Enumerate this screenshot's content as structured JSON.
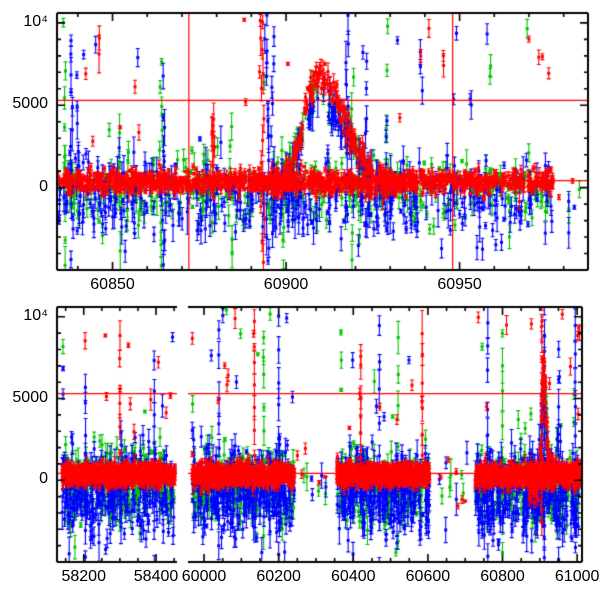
{
  "figure": {
    "background": "#ffffff",
    "frame_color": "#000000",
    "refline_color": "#ff0000",
    "marker_colors": {
      "red": "#ff0000",
      "green": "#00c300",
      "blue": "#0000ff"
    },
    "style": {
      "marker": 3,
      "cap": 2,
      "bar_width": 1.1
    },
    "error_bars": {
      "red": {
        "mu": 200,
        "sigma": 90,
        "min": 60
      },
      "green": {
        "mu": 480,
        "sigma": 220,
        "min": 100
      },
      "blue": {
        "mu": 560,
        "sigma": 260,
        "min": 120
      },
      "burst": {
        "mu": 700,
        "sigma": 300,
        "min": 200
      },
      "outlier": {
        "mu": 320,
        "sigma": 150,
        "min": 90
      }
    }
  },
  "chart_data": {
    "type": "scatter",
    "description": "Two-panel photometric light curve; flux vs MJD with error bars in three bands (red, green, blue points), red reference lines at flux 5300 and 420; top panel is a zoom of MJD 60834-60987 with vertical red marker lines at 60872 and 60948; bottom panel has a broken time axis (58126-58458, then 59957-61013) with four dense observing seasons.",
    "seed": 20240613,
    "y_axis": {
      "lim": [
        -5000,
        10600
      ],
      "minor_step": 1000,
      "major_ticks": [
        {
          "value": 10000,
          "label": "10⁴"
        },
        {
          "value": 5000,
          "label": "5000"
        },
        {
          "value": 0,
          "label": "0"
        }
      ]
    },
    "panels": [
      {
        "name": "top-panel",
        "rect": {
          "left": 57,
          "top": 13,
          "right": 588,
          "bottom": 270
        },
        "boxes": [
          {
            "left": 57,
            "right": 588,
            "xlim": [
              60834,
              60987
            ],
            "edge_left": true,
            "edge_right": true,
            "minor_step": 10,
            "major_ticks": [
              {
                "value": 60850,
                "label": "60850"
              },
              {
                "value": 60900,
                "label": "60900"
              },
              {
                "value": 60950,
                "label": "60950"
              }
            ]
          }
        ],
        "hlines": [
          5300,
          420
        ],
        "vlines": [
          60872,
          60948
        ],
        "outliers": {
          "frac": 0.012,
          "lo": 2600,
          "hi": 10300
        },
        "segments": [
          {
            "t0": 60834.5,
            "t1": 60977,
            "red": {
              "n": 1250,
              "mu": 340,
              "sigma": 330
            },
            "blue": {
              "n": 430,
              "mu": -550,
              "sigma": 1250
            },
            "green": {
              "n": 360,
              "mu": -200,
              "sigma": 1000
            }
          },
          {
            "t0": 60977,
            "t1": 60985,
            "red": {
              "n": 2,
              "mu": 0,
              "sigma": 500
            },
            "blue": {
              "n": 3,
              "mu": -1200,
              "sigma": 900
            },
            "green": {
              "n": 2,
              "mu": -800,
              "sigma": 700
            }
          }
        ],
        "flare": {
          "center": 60909.5,
          "rise": 4.5,
          "fall": 7.5,
          "window": [
            60896,
            60932
          ],
          "amps": {
            "red": 6700,
            "blue": 5400,
            "green": 5900
          },
          "extra_n": {
            "red": 230,
            "blue": 90,
            "green": 75
          },
          "scatter": 430
        },
        "bursts": [
          {
            "t": 60836.3,
            "color": "green",
            "lo": -4600,
            "hi": 7000,
            "n": 8
          },
          {
            "t": 60838.4,
            "color": "blue",
            "lo": -4300,
            "hi": 8200,
            "n": 12
          },
          {
            "t": 60840.0,
            "color": "blue",
            "lo": -2500,
            "hi": 6300,
            "n": 8
          },
          {
            "t": 60846.0,
            "color": "red",
            "lo": 7800,
            "hi": 8700,
            "n": 2
          },
          {
            "t": 60852.0,
            "color": "green",
            "lo": -3500,
            "hi": 3000,
            "n": 6
          },
          {
            "t": 60864.0,
            "color": "green",
            "lo": -4800,
            "hi": 7900,
            "n": 10
          },
          {
            "t": 60864.8,
            "color": "blue",
            "lo": -4500,
            "hi": 6200,
            "n": 9
          },
          {
            "t": 60879.0,
            "color": "red",
            "lo": 900,
            "hi": 4300,
            "n": 8
          },
          {
            "t": 60884.0,
            "color": "green",
            "lo": -4500,
            "hi": 4000,
            "n": 7
          },
          {
            "t": 60893.0,
            "color": "red",
            "lo": -4500,
            "hi": 10450,
            "n": 13
          },
          {
            "t": 60894.6,
            "color": "blue",
            "lo": -4900,
            "hi": 10450,
            "n": 15
          },
          {
            "t": 60896.2,
            "color": "blue",
            "lo": -2800,
            "hi": 9200,
            "n": 9
          },
          {
            "t": 60899.0,
            "color": "green",
            "lo": -4800,
            "hi": 2000,
            "n": 7
          },
          {
            "t": 60917.6,
            "color": "blue",
            "lo": -1800,
            "hi": 10450,
            "n": 10
          },
          {
            "t": 60919.0,
            "color": "green",
            "lo": -4200,
            "hi": 6400,
            "n": 8
          },
          {
            "t": 60923.5,
            "color": "blue",
            "lo": -1200,
            "hi": 7200,
            "n": 7
          },
          {
            "t": 60929.0,
            "color": "green",
            "lo": 3500,
            "hi": 9700,
            "n": 3
          },
          {
            "t": 60939.0,
            "color": "blue",
            "lo": 5800,
            "hi": 8300,
            "n": 3
          },
          {
            "t": 60945.0,
            "color": "red",
            "lo": 7400,
            "hi": 7900,
            "n": 2
          },
          {
            "t": 60953.0,
            "color": "blue",
            "lo": 5200,
            "hi": 5600,
            "n": 2
          },
          {
            "t": 60959.0,
            "color": "green",
            "lo": 6800,
            "hi": 7300,
            "n": 2
          }
        ]
      },
      {
        "name": "bottom-panel",
        "rect": {
          "left": 57,
          "top": 307,
          "right": 582,
          "bottom": 562
        },
        "boxes": [
          {
            "left": 57,
            "right": 177,
            "xlim": [
              58126,
              58458
            ],
            "edge_left": true,
            "edge_right": false,
            "minor_step": 50,
            "major_ticks": [
              {
                "value": 58200,
                "label": "58200"
              },
              {
                "value": 58400,
                "label": "58400"
              }
            ]
          },
          {
            "left": 188,
            "right": 582,
            "xlim": [
              59957,
              61013
            ],
            "edge_left": false,
            "edge_right": true,
            "minor_step": 50,
            "major_ticks": [
              {
                "value": 60000,
                "label": "60000"
              },
              {
                "value": 60200,
                "label": "60200"
              },
              {
                "value": 60400,
                "label": "60400"
              },
              {
                "value": 60600,
                "label": "60600"
              },
              {
                "value": 60800,
                "label": "60800"
              },
              {
                "value": 61000,
                "label": "61000"
              }
            ]
          }
        ],
        "hlines": [
          5300,
          420
        ],
        "vlines": [],
        "outliers": {
          "frac": 0.015,
          "lo": 2600,
          "hi": 10450
        },
        "segments": [
          {
            "t0": 58140,
            "t1": 58452,
            "red": {
              "n": 850,
              "mu": 320,
              "sigma": 310
            },
            "blue": {
              "n": 300,
              "mu": -700,
              "sigma": 1300
            },
            "green": {
              "n": 260,
              "mu": -350,
              "sigma": 1100
            }
          },
          {
            "t0": 59968,
            "t1": 60242,
            "red": {
              "n": 800,
              "mu": 320,
              "sigma": 310
            },
            "blue": {
              "n": 290,
              "mu": -700,
              "sigma": 1300
            },
            "green": {
              "n": 240,
              "mu": -350,
              "sigma": 1100
            }
          },
          {
            "t0": 60246,
            "t1": 60352,
            "red": {
              "n": 5,
              "mu": 0,
              "sigma": 800
            },
            "blue": {
              "n": 4,
              "mu": -900,
              "sigma": 1200
            },
            "green": {
              "n": 4,
              "mu": -400,
              "sigma": 1000
            }
          },
          {
            "t0": 60356,
            "t1": 60604,
            "red": {
              "n": 750,
              "mu": 320,
              "sigma": 310
            },
            "blue": {
              "n": 270,
              "mu": -700,
              "sigma": 1300
            },
            "green": {
              "n": 220,
              "mu": -350,
              "sigma": 1100
            }
          },
          {
            "t0": 60608,
            "t1": 60724,
            "red": {
              "n": 6,
              "mu": 0,
              "sigma": 800
            },
            "blue": {
              "n": 5,
              "mu": -900,
              "sigma": 1200
            },
            "green": {
              "n": 5,
              "mu": -400,
              "sigma": 1000
            }
          },
          {
            "t0": 60727,
            "t1": 61008,
            "red": {
              "n": 900,
              "mu": 320,
              "sigma": 310
            },
            "blue": {
              "n": 320,
              "mu": -700,
              "sigma": 1300
            },
            "green": {
              "n": 260,
              "mu": -350,
              "sigma": 1100
            }
          }
        ],
        "flare": {
          "center": 60909.5,
          "rise": 4.5,
          "fall": 7.5,
          "window": [
            60870,
            60936
          ],
          "amps": {
            "red": 6700,
            "blue": 5400,
            "green": 5900
          },
          "extra_n": {
            "red": 120,
            "blue": 50,
            "green": 40
          },
          "scatter": 600
        },
        "bursts": [
          {
            "t": 58205,
            "color": "blue",
            "lo": -4500,
            "hi": 6000,
            "n": 8
          },
          {
            "t": 58300,
            "color": "red",
            "lo": 2000,
            "hi": 8600,
            "n": 6
          },
          {
            "t": 58395,
            "color": "blue",
            "lo": -4800,
            "hi": 7200,
            "n": 8
          },
          {
            "t": 60040,
            "color": "blue",
            "lo": -4000,
            "hi": 9000,
            "n": 8
          },
          {
            "t": 60135,
            "color": "red",
            "lo": 1500,
            "hi": 9800,
            "n": 7
          },
          {
            "t": 60160,
            "color": "green",
            "lo": -3500,
            "hi": 9000,
            "n": 7
          },
          {
            "t": 60200,
            "color": "blue",
            "lo": -4500,
            "hi": 10000,
            "n": 9
          },
          {
            "t": 60420,
            "color": "red",
            "lo": 1000,
            "hi": 8000,
            "n": 6
          },
          {
            "t": 60470,
            "color": "blue",
            "lo": -4600,
            "hi": 9500,
            "n": 8
          },
          {
            "t": 60520,
            "color": "green",
            "lo": -4000,
            "hi": 8500,
            "n": 7
          },
          {
            "t": 60585,
            "color": "red",
            "lo": 1500,
            "hi": 9000,
            "n": 6
          },
          {
            "t": 60760,
            "color": "blue",
            "lo": -4700,
            "hi": 9800,
            "n": 9
          },
          {
            "t": 60800,
            "color": "green",
            "lo": -4300,
            "hi": 9000,
            "n": 8
          },
          {
            "t": 60905,
            "color": "red",
            "lo": -3000,
            "hi": 10500,
            "n": 14
          },
          {
            "t": 60912,
            "color": "blue",
            "lo": -4800,
            "hi": 10500,
            "n": 12
          },
          {
            "t": 60950,
            "color": "blue",
            "lo": -4500,
            "hi": 8000,
            "n": 8
          },
          {
            "t": 60995,
            "color": "blue",
            "lo": -4000,
            "hi": 9500,
            "n": 9
          }
        ]
      }
    ]
  }
}
